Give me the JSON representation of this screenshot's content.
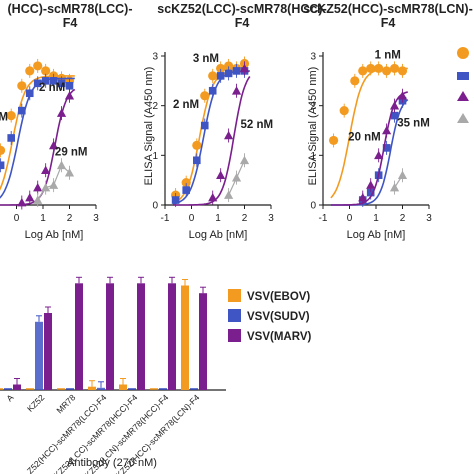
{
  "colors": {
    "orange": "#F39B21",
    "blue": "#3F55C4",
    "purple": "#7B1F8E",
    "gray": "#A9A9A9",
    "axis": "#222222"
  },
  "chart_data": [
    {
      "type": "line",
      "title": "(HCC)-scMR78(LCC)-",
      "subtitle": "F4",
      "xlabel": "Log Ab [nM]",
      "ylabel": "",
      "xlim": [
        -1,
        3
      ],
      "ylim": [
        0,
        3
      ],
      "xticks": [
        "0",
        "1",
        "2",
        "3"
      ],
      "xtick_values": [
        0,
        1,
        2,
        3
      ],
      "yticks": [],
      "annotations": [
        {
          "text": "2 nM",
          "x": 0.85,
          "y": 2.3,
          "color": "orange"
        },
        {
          "text": "nM",
          "x": -0.95,
          "y": 1.7,
          "color": "blue"
        },
        {
          "text": "29 nM",
          "x": 1.45,
          "y": 1.0,
          "color": "purple"
        }
      ],
      "series": [
        {
          "color": "orange",
          "marker": "circle",
          "ec50": -0.15,
          "hill": 1.8,
          "top": 2.6,
          "x": [
            -0.6,
            -0.2,
            0.2,
            0.5,
            0.8,
            1.1,
            1.4,
            1.7,
            2.0
          ],
          "y": [
            1.1,
            1.8,
            2.4,
            2.7,
            2.8,
            2.7,
            2.6,
            2.55,
            2.5
          ]
        },
        {
          "color": "blue",
          "marker": "square",
          "ec50": 0.05,
          "hill": 1.8,
          "top": 2.55,
          "x": [
            -0.6,
            -0.2,
            0.2,
            0.5,
            0.8,
            1.1,
            1.4,
            1.7,
            2.0
          ],
          "y": [
            0.8,
            1.35,
            1.9,
            2.25,
            2.45,
            2.5,
            2.5,
            2.45,
            2.4
          ]
        },
        {
          "color": "purple",
          "marker": "triangle",
          "ec50": 1.45,
          "hill": 2.0,
          "top": 2.4,
          "x": [
            0.2,
            0.5,
            0.8,
            1.1,
            1.4,
            1.7,
            2.0
          ],
          "y": [
            0.05,
            0.15,
            0.35,
            0.7,
            1.2,
            1.85,
            2.2
          ]
        },
        {
          "color": "gray",
          "marker": "triangle",
          "ec50": null,
          "x": [
            0.8,
            1.1,
            1.4,
            1.7,
            2.0
          ],
          "y": [
            0.1,
            0.35,
            0.4,
            0.8,
            0.65
          ]
        }
      ]
    },
    {
      "type": "line",
      "title": "scKZ52(LCC)-scMR78(HCC)-",
      "subtitle": "F4",
      "xlabel": "Log Ab [nM]",
      "ylabel": "ELISA Signal (A450 nm)",
      "xlim": [
        -1,
        3
      ],
      "ylim": [
        0,
        3
      ],
      "xticks": [
        "-1",
        "0",
        "1",
        "2",
        "3"
      ],
      "xtick_values": [
        -1,
        0,
        1,
        2,
        3
      ],
      "yticks": [
        "0",
        "1",
        "2",
        "3"
      ],
      "annotations": [
        {
          "text": "3 nM",
          "x": 0.05,
          "y": 2.88,
          "color": "orange"
        },
        {
          "text": "2 nM",
          "x": -0.7,
          "y": 1.95,
          "color": "blue"
        },
        {
          "text": "52 nM",
          "x": 1.85,
          "y": 1.55,
          "color": "purple"
        }
      ],
      "series": [
        {
          "color": "orange",
          "marker": "circle",
          "ec50": 0.3,
          "hill": 1.8,
          "top": 2.7,
          "x": [
            -0.6,
            -0.2,
            0.2,
            0.5,
            0.8,
            1.1,
            1.4,
            1.7,
            2.0
          ],
          "y": [
            0.2,
            0.45,
            1.2,
            2.2,
            2.6,
            2.75,
            2.8,
            2.75,
            2.85
          ]
        },
        {
          "color": "blue",
          "marker": "square",
          "ec50": 0.45,
          "hill": 1.8,
          "top": 2.7,
          "x": [
            -0.6,
            -0.2,
            0.2,
            0.5,
            0.8,
            1.1,
            1.4,
            1.7,
            2.0
          ],
          "y": [
            0.1,
            0.3,
            0.9,
            1.6,
            2.3,
            2.6,
            2.65,
            2.7,
            2.7
          ]
        },
        {
          "color": "purple",
          "marker": "triangle",
          "ec50": 1.6,
          "hill": 2.0,
          "top": 2.75,
          "x": [
            0.8,
            1.1,
            1.4,
            1.7,
            2.0
          ],
          "y": [
            0.15,
            0.6,
            1.4,
            2.3,
            2.75
          ]
        },
        {
          "color": "gray",
          "marker": "triangle",
          "ec50": null,
          "x": [
            1.4,
            1.7,
            2.0
          ],
          "y": [
            0.2,
            0.55,
            0.9
          ]
        }
      ]
    },
    {
      "type": "line",
      "title": "scKZ52(HCC)-scMR78(LCN)-",
      "subtitle": "F4",
      "xlabel": "Log Ab [nM]",
      "ylabel": "ELISA Signal (A450 nm)",
      "xlim": [
        -1,
        3
      ],
      "ylim": [
        0,
        3
      ],
      "xticks": [
        "-1",
        "0",
        "1",
        "2",
        "3"
      ],
      "xtick_values": [
        -1,
        0,
        1,
        2,
        3
      ],
      "yticks": [
        "0",
        "1",
        "2",
        "3"
      ],
      "annotations": [
        {
          "text": "1 nM",
          "x": 0.95,
          "y": 2.95,
          "color": "orange"
        },
        {
          "text": "35 nM",
          "x": 1.8,
          "y": 1.58,
          "color": "blue"
        },
        {
          "text": "20 nM",
          "x": -0.05,
          "y": 1.3,
          "color": "purple"
        }
      ],
      "series": [
        {
          "color": "orange",
          "marker": "circle",
          "ec50": 0.0,
          "hill": 1.8,
          "top": 2.75,
          "x": [
            -0.6,
            -0.2,
            0.2,
            0.5,
            0.8,
            1.1,
            1.4,
            1.7,
            2.0
          ],
          "y": [
            1.3,
            1.9,
            2.5,
            2.7,
            2.75,
            2.75,
            2.7,
            2.75,
            2.7
          ]
        },
        {
          "color": "blue",
          "marker": "square",
          "ec50": 1.55,
          "hill": 2.2,
          "top": 2.2,
          "x": [
            0.5,
            0.8,
            1.1,
            1.4,
            1.7,
            2.0
          ],
          "y": [
            0.1,
            0.25,
            0.6,
            1.15,
            1.8,
            2.1
          ]
        },
        {
          "color": "purple",
          "marker": "triangle",
          "ec50": 1.3,
          "hill": 2.2,
          "top": 2.3,
          "x": [
            0.5,
            0.8,
            1.1,
            1.4,
            1.7,
            2.0
          ],
          "y": [
            0.15,
            0.4,
            1.0,
            1.5,
            2.0,
            2.2
          ]
        },
        {
          "color": "gray",
          "marker": "triangle",
          "ec50": null,
          "x": [
            1.7,
            2.0
          ],
          "y": [
            0.35,
            0.6
          ]
        }
      ]
    },
    {
      "type": "bar",
      "title": "",
      "xlabel": "Antibody (270 nM)",
      "ylabel": "",
      "ylim": [
        0,
        1.0
      ],
      "legend": {
        "position": "top-right",
        "entries": [
          {
            "name": "VSV(EBOV)",
            "color": "orange"
          },
          {
            "name": "VSV(SUDV)",
            "color": "blue"
          },
          {
            "name": "VSV(MARV)",
            "color": "purple"
          }
        ]
      },
      "categories": [
        "A",
        "KZ52",
        "MR78",
        "Z52(HCC)-scMR78(LCC)-F4",
        "scKZ52(LCC)-scMR78(HCC)-F4",
        "scKZ52(LCN)-scMR78(HCC)-F4",
        "scKZ52(HCC)-scMR78(LCN)-F4",
        ""
      ],
      "series": [
        {
          "name": "VSV(EBOV)",
          "color": "orange",
          "values": [
            0.0,
            0.0,
            0.0,
            0.03,
            0.05,
            0.0,
            0.95,
            0.0
          ]
        },
        {
          "name": "VSV(SUDV)",
          "color": "blue",
          "values": [
            0.0,
            0.62,
            0.0,
            0.02,
            0.0,
            0.0,
            0.0,
            0.0
          ]
        },
        {
          "name": "VSV(MARV)",
          "color": "purple",
          "values": [
            0.05,
            0.7,
            0.97,
            0.97,
            0.97,
            0.97,
            0.88,
            0.0
          ]
        }
      ]
    }
  ]
}
